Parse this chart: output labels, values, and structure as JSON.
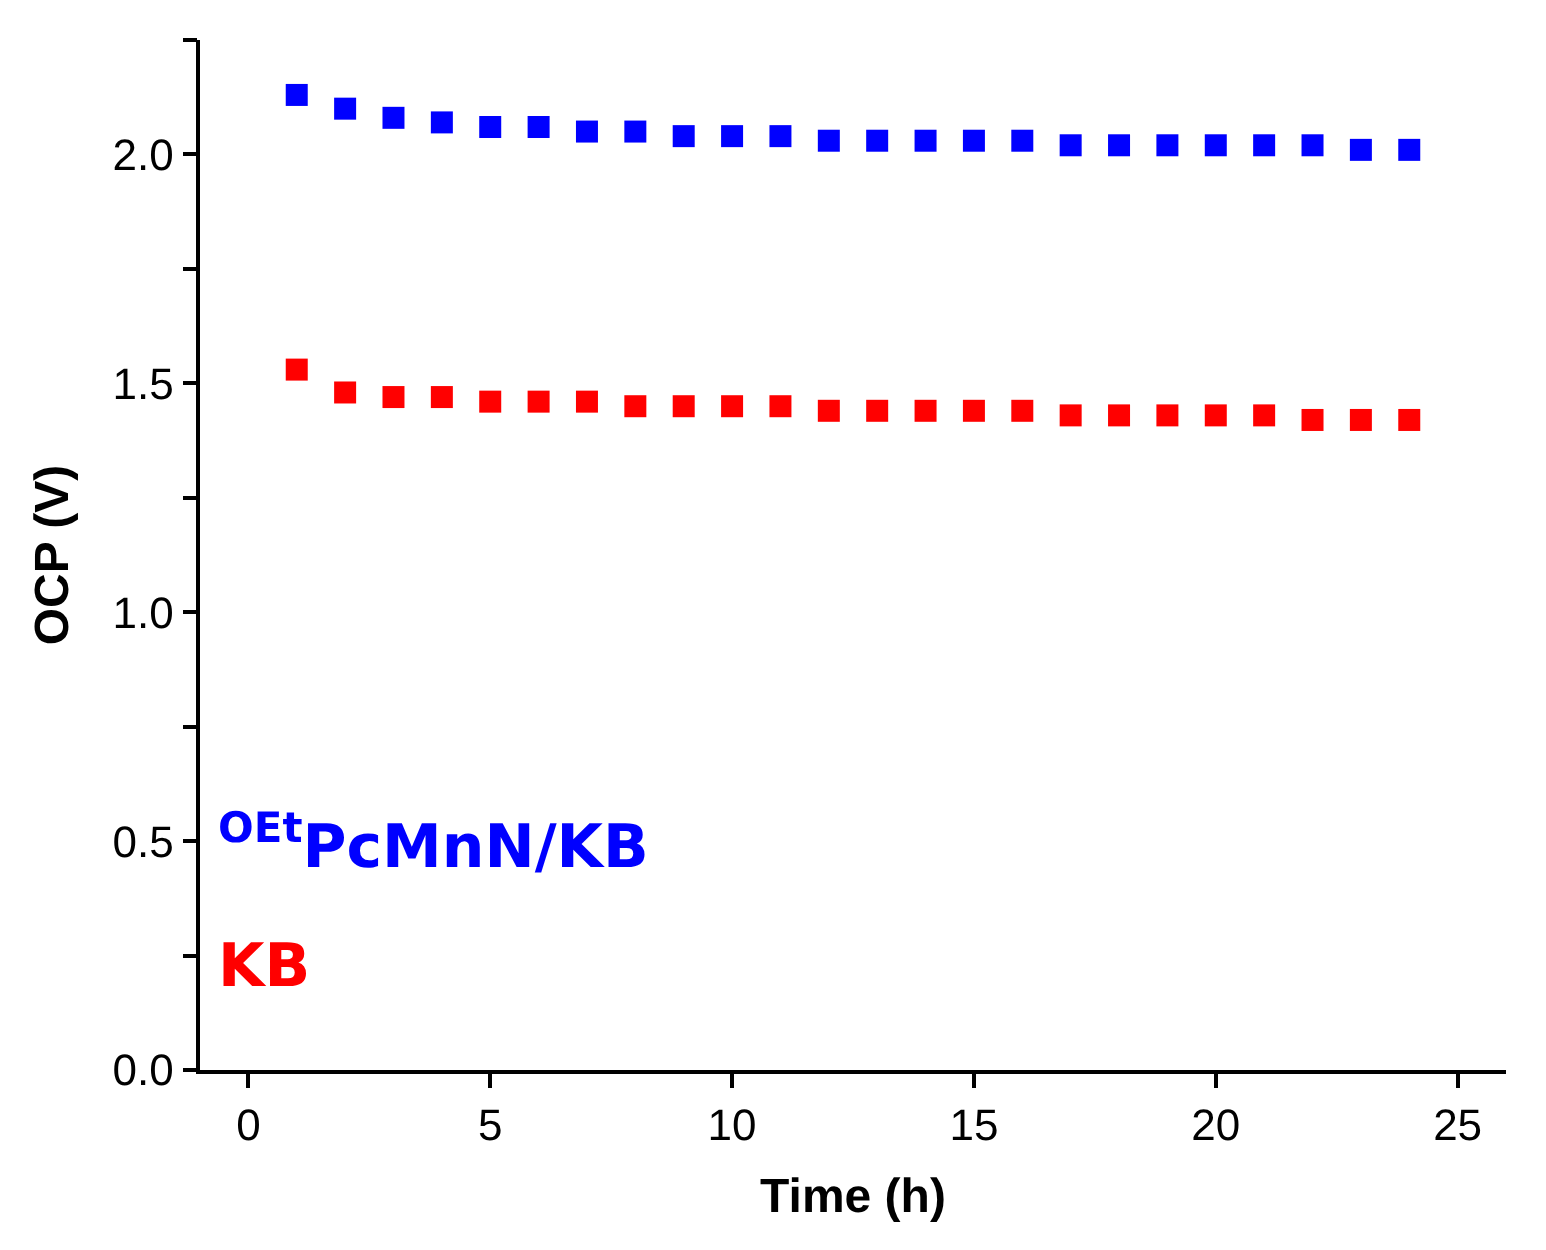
{
  "chart_data": {
    "type": "scatter",
    "xlabel": "Time (h)",
    "ylabel": "OCP (V)",
    "x": [
      1,
      2,
      3,
      4,
      5,
      6,
      7,
      8,
      9,
      10,
      11,
      12,
      13,
      14,
      15,
      16,
      17,
      18,
      19,
      20,
      21,
      22,
      23,
      24
    ],
    "series": [
      {
        "name": "$^{OEt}$PcMnN/KB",
        "color": "#0000ff",
        "values": [
          2.13,
          2.1,
          2.08,
          2.07,
          2.06,
          2.06,
          2.05,
          2.05,
          2.04,
          2.04,
          2.04,
          2.03,
          2.03,
          2.03,
          2.03,
          2.03,
          2.02,
          2.02,
          2.02,
          2.02,
          2.02,
          2.02,
          2.01,
          2.01
        ]
      },
      {
        "name": "KB",
        "color": "#ff0000",
        "values": [
          1.53,
          1.48,
          1.47,
          1.47,
          1.46,
          1.46,
          1.46,
          1.45,
          1.45,
          1.45,
          1.45,
          1.44,
          1.44,
          1.44,
          1.44,
          1.44,
          1.43,
          1.43,
          1.43,
          1.43,
          1.43,
          1.42,
          1.42,
          1.42
        ]
      }
    ],
    "xlim": [
      -1,
      26
    ],
    "xticks": [
      0,
      5,
      10,
      15,
      20,
      25
    ],
    "ylim": [
      0,
      2.25
    ],
    "yticks": [
      {
        "value": 0,
        "label": "0.0"
      },
      {
        "value": 0.25,
        "label": null
      },
      {
        "value": 0.5,
        "label": "0.5"
      },
      {
        "value": 0.75,
        "label": null
      },
      {
        "value": 1,
        "label": "1.0"
      },
      {
        "value": 1.25,
        "label": null
      },
      {
        "value": 1.5,
        "label": "1.5"
      },
      {
        "value": 1.75,
        "label": null
      },
      {
        "value": 2,
        "label": "2.0"
      },
      {
        "value": 2.25,
        "label": null
      }
    ],
    "marker": "square",
    "legend": false
  }
}
